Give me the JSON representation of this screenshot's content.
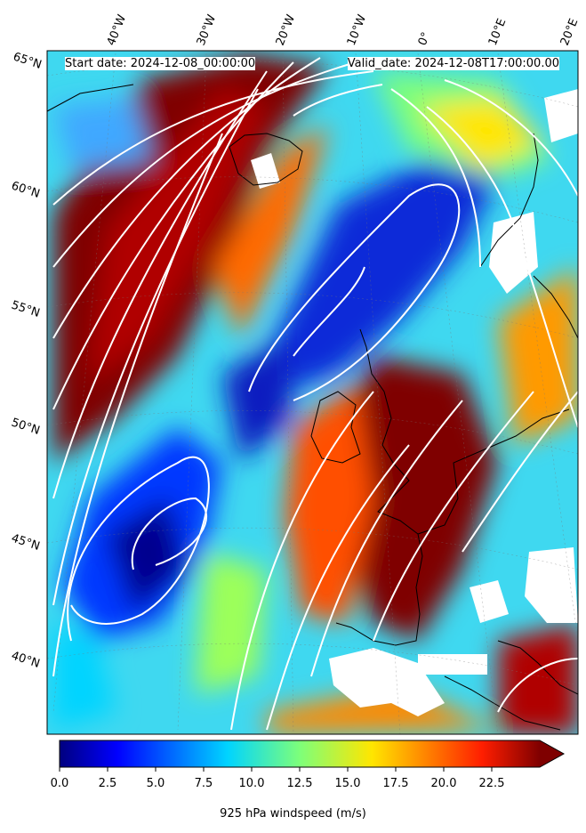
{
  "header": {
    "start_date": "Start date: 2024-12-08_00:00:00",
    "valid_date": "Valid_date: 2024-12-08T17:00:00.00"
  },
  "longitude_labels": [
    "40°W",
    "30°W",
    "20°W",
    "10°W",
    "0°",
    "10°E",
    "20°E"
  ],
  "latitude_labels": [
    "65°N",
    "60°N",
    "55°N",
    "50°N",
    "45°N",
    "40°N"
  ],
  "colorbar": {
    "label": "925 hPa windspeed (m/s)",
    "ticks": [
      "0.0",
      "2.5",
      "5.0",
      "7.5",
      "10.0",
      "12.5",
      "15.0",
      "17.5",
      "20.0",
      "22.5"
    ],
    "min": 0,
    "max": 25,
    "extend": "max",
    "colormap": "jet"
  },
  "colors": {
    "streamline": "#ffffff",
    "coastline": "#000000",
    "jet_low": "#00007f",
    "jet_high": "#7f0000"
  }
}
